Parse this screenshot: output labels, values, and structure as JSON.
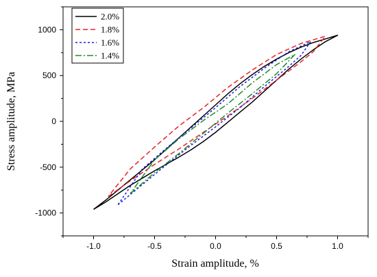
{
  "chart_data": {
    "type": "line",
    "title": "",
    "xlabel": "Strain amplitude, %",
    "ylabel": "Stress amplitude, MPa",
    "xlim": [
      -1.25,
      1.25
    ],
    "ylim": [
      -1250,
      1250
    ],
    "xticks": [
      -1.0,
      -0.5,
      0.0,
      0.5,
      1.0
    ],
    "xtick_labels": [
      "-1.0",
      "-0.5",
      "0.0",
      "0.5",
      "1.0"
    ],
    "yticks": [
      -1000,
      -500,
      0,
      500,
      1000
    ],
    "ytick_labels": [
      "-1000",
      "-500",
      "0",
      "500",
      "1000"
    ],
    "grid": false,
    "legend_position": "top-left",
    "series": [
      {
        "name": "2.0%",
        "color": "#000000",
        "dash": "solid",
        "points": [
          [
            -1.0,
            -960
          ],
          [
            -0.9,
            -880
          ],
          [
            -0.8,
            -790
          ],
          [
            -0.7,
            -700
          ],
          [
            -0.6,
            -620
          ],
          [
            -0.5,
            -540
          ],
          [
            -0.4,
            -465
          ],
          [
            -0.3,
            -390
          ],
          [
            -0.2,
            -310
          ],
          [
            -0.1,
            -220
          ],
          [
            0.0,
            -120
          ],
          [
            0.1,
            -10
          ],
          [
            0.2,
            100
          ],
          [
            0.3,
            210
          ],
          [
            0.4,
            330
          ],
          [
            0.5,
            450
          ],
          [
            0.6,
            570
          ],
          [
            0.7,
            680
          ],
          [
            0.8,
            780
          ],
          [
            0.9,
            870
          ],
          [
            1.0,
            940
          ],
          [
            0.9,
            900
          ],
          [
            0.8,
            860
          ],
          [
            0.7,
            810
          ],
          [
            0.6,
            750
          ],
          [
            0.5,
            680
          ],
          [
            0.4,
            600
          ],
          [
            0.3,
            510
          ],
          [
            0.2,
            410
          ],
          [
            0.1,
            300
          ],
          [
            0.0,
            180
          ],
          [
            -0.1,
            60
          ],
          [
            -0.2,
            -60
          ],
          [
            -0.3,
            -180
          ],
          [
            -0.4,
            -300
          ],
          [
            -0.5,
            -420
          ],
          [
            -0.6,
            -530
          ],
          [
            -0.7,
            -640
          ],
          [
            -0.8,
            -750
          ],
          [
            -0.9,
            -860
          ],
          [
            -1.0,
            -960
          ]
        ]
      },
      {
        "name": "1.8%",
        "color": "#e8202a",
        "dash": "7,4",
        "points": [
          [
            -0.88,
            -820
          ],
          [
            -0.7,
            -650
          ],
          [
            -0.5,
            -470
          ],
          [
            -0.3,
            -300
          ],
          [
            -0.1,
            -120
          ],
          [
            0.1,
            60
          ],
          [
            0.3,
            250
          ],
          [
            0.5,
            450
          ],
          [
            0.7,
            650
          ],
          [
            0.8,
            760
          ],
          [
            0.9,
            930
          ],
          [
            0.7,
            850
          ],
          [
            0.5,
            730
          ],
          [
            0.3,
            560
          ],
          [
            0.1,
            370
          ],
          [
            0.0,
            260
          ],
          [
            -0.1,
            150
          ],
          [
            -0.3,
            -50
          ],
          [
            -0.5,
            -280
          ],
          [
            -0.7,
            -520
          ],
          [
            -0.88,
            -820
          ]
        ]
      },
      {
        "name": "1.6%",
        "color": "#1a1adf",
        "dash": "3,3",
        "points": [
          [
            -0.8,
            -910
          ],
          [
            -0.6,
            -690
          ],
          [
            -0.4,
            -470
          ],
          [
            -0.2,
            -260
          ],
          [
            0.0,
            -60
          ],
          [
            0.2,
            150
          ],
          [
            0.4,
            380
          ],
          [
            0.6,
            600
          ],
          [
            0.7,
            720
          ],
          [
            0.78,
            870
          ],
          [
            0.6,
            760
          ],
          [
            0.4,
            580
          ],
          [
            0.2,
            380
          ],
          [
            0.0,
            150
          ],
          [
            -0.2,
            -70
          ],
          [
            -0.4,
            -290
          ],
          [
            -0.6,
            -520
          ],
          [
            -0.8,
            -910
          ]
        ]
      },
      {
        "name": "1.4%",
        "color": "#1f8a24",
        "dash": "9,3,2,3",
        "points": [
          [
            -0.7,
            -790
          ],
          [
            -0.5,
            -560
          ],
          [
            -0.3,
            -350
          ],
          [
            -0.1,
            -130
          ],
          [
            0.1,
            90
          ],
          [
            0.3,
            300
          ],
          [
            0.5,
            520
          ],
          [
            0.65,
            730
          ],
          [
            0.5,
            620
          ],
          [
            0.3,
            420
          ],
          [
            0.1,
            190
          ],
          [
            -0.1,
            10
          ],
          [
            -0.3,
            -190
          ],
          [
            -0.5,
            -420
          ],
          [
            -0.7,
            -790
          ]
        ]
      }
    ]
  }
}
